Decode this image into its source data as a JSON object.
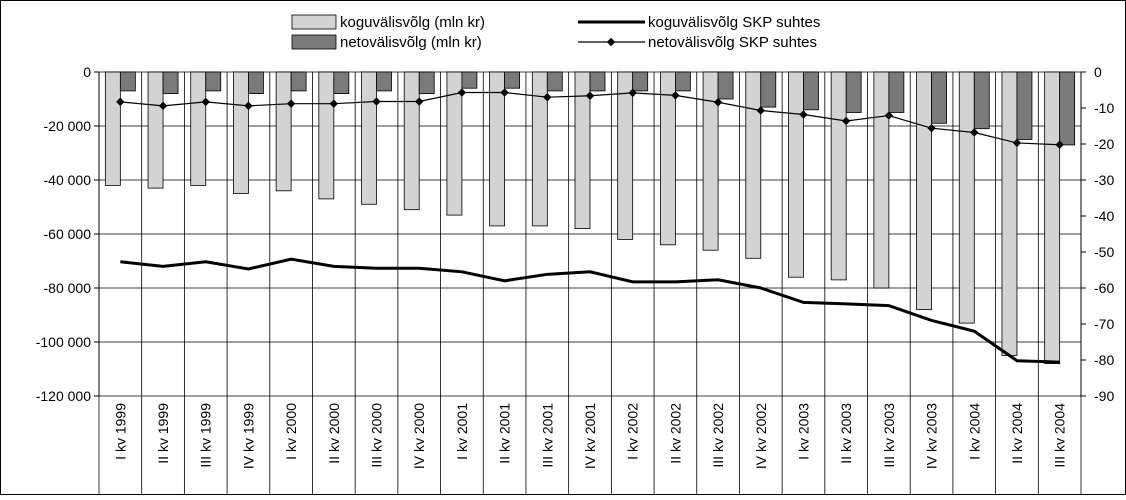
{
  "chart_data": {
    "type": "bar",
    "categories": [
      "I kv 1999",
      "II kv 1999",
      "III kv 1999",
      "IV kv 1999",
      "I kv 2000",
      "II kv 2000",
      "III kv 2000",
      "IV kv 2000",
      "I kv 2001",
      "II kv 2001",
      "III kv 2001",
      "IV kv 2001",
      "I kv 2002",
      "II kv 2002",
      "III kv 2002",
      "IV kv 2002",
      "I kv 2003",
      "II kv 2003",
      "III kv 2003",
      "IV kv 2003",
      "I kv 2004",
      "II kv 2004",
      "III kv 2004"
    ],
    "left_axis": {
      "range": [
        -120000,
        0
      ],
      "ticks": [
        0,
        -20000,
        -40000,
        -60000,
        -80000,
        -100000,
        -120000
      ],
      "tick_labels": [
        "0",
        "-20 000",
        "-40 000",
        "-60 000",
        "-80 000",
        "-100 000",
        "-120 000"
      ]
    },
    "right_axis": {
      "range": [
        -90,
        0
      ],
      "ticks": [
        0,
        -10,
        -20,
        -30,
        -40,
        -50,
        -60,
        -70,
        -80,
        -90
      ],
      "tick_labels": [
        "0",
        "-10",
        "-20",
        "-30",
        "-40",
        "-50",
        "-60",
        "-70",
        "-80",
        "-90"
      ]
    },
    "grid": true,
    "legend_position": "top",
    "series": [
      {
        "name": "koguvälisvõlg (mln kr)",
        "kind": "bar",
        "axis": "left",
        "color": "#d3d3d3",
        "values": [
          -42000,
          -43000,
          -42000,
          -45000,
          -44000,
          -47000,
          -49000,
          -51000,
          -53000,
          -57000,
          -57000,
          -58000,
          -62000,
          -64000,
          -66000,
          -69000,
          -76000,
          -77000,
          -80000,
          -88000,
          -93000,
          -105000,
          -108000
        ]
      },
      {
        "name": "netovälisvõlg (mln kr)",
        "kind": "bar",
        "axis": "left",
        "color": "#7a7a7a",
        "values": [
          -7000,
          -8000,
          -7000,
          -8000,
          -7000,
          -8000,
          -7000,
          -8000,
          -6000,
          -6000,
          -7000,
          -7000,
          -7000,
          -7000,
          -10000,
          -13000,
          -14000,
          -15000,
          -15000,
          -19000,
          -21000,
          -25000,
          -27000
        ]
      },
      {
        "name": "koguvälisvõlg SKP suhtes",
        "kind": "line",
        "axis": "right",
        "color": "#000000",
        "values": [
          -52.7,
          -54,
          -52.7,
          -54.7,
          -52,
          -54,
          -54.5,
          -54.5,
          -55.5,
          -58,
          -56.2,
          -55.5,
          -58.3,
          -58.3,
          -57.7,
          -60,
          -64,
          -64.4,
          -64.9,
          -69,
          -72,
          -80.2,
          -80.6
        ]
      },
      {
        "name": "netovälisvõlg SKP suhtes",
        "kind": "line-marker",
        "axis": "right",
        "color": "#000000",
        "values": [
          -8.3,
          -9.4,
          -8.3,
          -9.4,
          -8.8,
          -8.8,
          -8.2,
          -8.2,
          -5.7,
          -5.7,
          -7,
          -6.6,
          -5.8,
          -6.5,
          -8.4,
          -10.7,
          -11.8,
          -13.6,
          -12.1,
          -15.6,
          -16.8,
          -19.7,
          -20.2
        ]
      }
    ]
  }
}
